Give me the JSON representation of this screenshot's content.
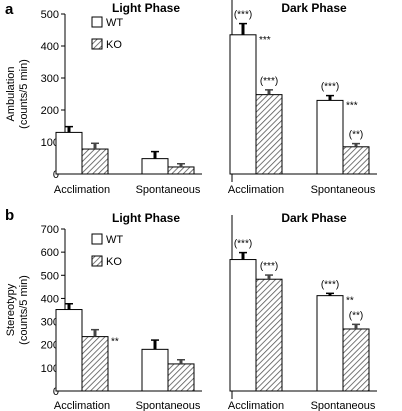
{
  "colors": {
    "wt_fill": "#ffffff",
    "ko_hatch": "#555555",
    "stroke": "#000000"
  },
  "chart_data": [
    {
      "type": "bar",
      "panel_label": "a",
      "ylabel": "Ambulation (counts/5 min)",
      "ylim": [
        0,
        500
      ],
      "yticks": [
        0,
        100,
        200,
        300,
        400,
        500
      ],
      "section_titles": [
        "Light Phase",
        "Dark Phase"
      ],
      "categories": [
        "Acclimation",
        "Spontaneous",
        "Acclimation",
        "Spontaneous"
      ],
      "legend": [
        "WT",
        "KO"
      ],
      "series": [
        {
          "name": "WT",
          "values": [
            130,
            48,
            435,
            230
          ],
          "errors": [
            18,
            22,
            35,
            15
          ]
        },
        {
          "name": "KO",
          "values": [
            78,
            22,
            248,
            85
          ],
          "errors": [
            18,
            10,
            15,
            10
          ]
        }
      ],
      "annotations": [
        {
          "group": 2,
          "series": "WT",
          "texts": [
            "(***)",
            "***"
          ]
        },
        {
          "group": 2,
          "series": "KO",
          "texts": [
            "(***)"
          ]
        },
        {
          "group": 3,
          "series": "WT",
          "texts": [
            "(***)",
            "***"
          ]
        },
        {
          "group": 3,
          "series": "KO",
          "texts": [
            "(**)"
          ]
        }
      ]
    },
    {
      "type": "bar",
      "panel_label": "b",
      "ylabel": "Stereotypy (counts/5 min)",
      "ylim": [
        0,
        700
      ],
      "yticks": [
        0,
        100,
        200,
        300,
        400,
        500,
        600,
        700
      ],
      "section_titles": [
        "Light Phase",
        "Dark Phase"
      ],
      "categories": [
        "Acclimation",
        "Spontaneous",
        "Acclimation",
        "Spontaneous"
      ],
      "legend": [
        "WT",
        "KO"
      ],
      "series": [
        {
          "name": "WT",
          "values": [
            352,
            180,
            568,
            412
          ],
          "errors": [
            25,
            40,
            30,
            10
          ]
        },
        {
          "name": "KO",
          "values": [
            235,
            117,
            483,
            268
          ],
          "errors": [
            30,
            18,
            18,
            20
          ]
        }
      ],
      "annotations": [
        {
          "group": 0,
          "series": "KO",
          "texts": [
            "**"
          ]
        },
        {
          "group": 2,
          "series": "WT",
          "texts": [
            "(***)"
          ]
        },
        {
          "group": 2,
          "series": "KO",
          "texts": [
            "(***)"
          ]
        },
        {
          "group": 3,
          "series": "WT",
          "texts": [
            "(***)",
            "**"
          ]
        },
        {
          "group": 3,
          "series": "KO",
          "texts": [
            "(**)"
          ]
        }
      ]
    }
  ]
}
